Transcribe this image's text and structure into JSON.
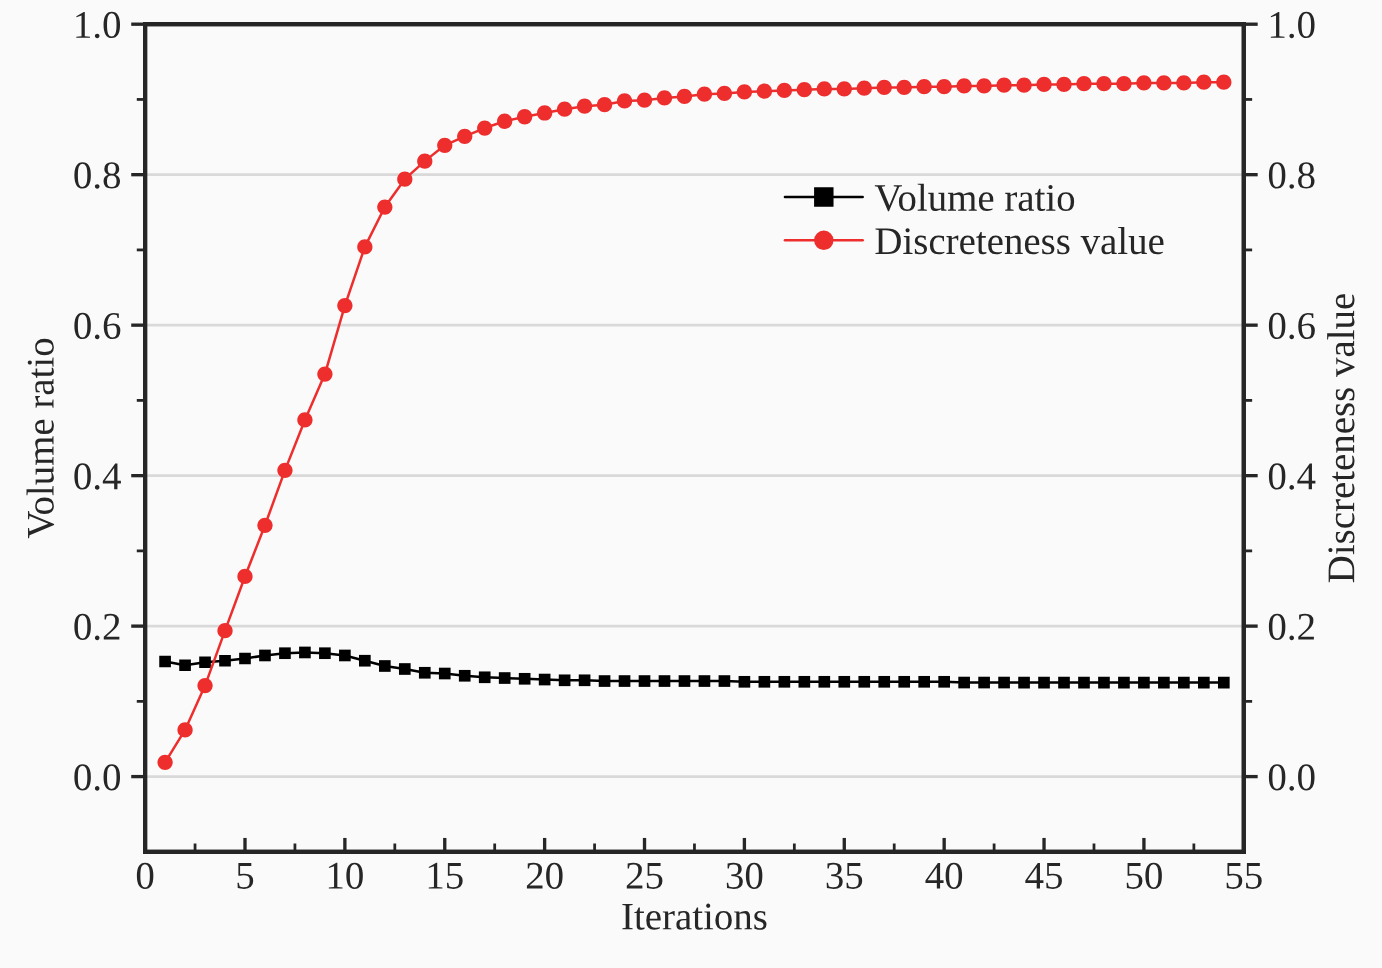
{
  "chart_data": {
    "type": "line",
    "xlabel": "Iterations",
    "ylabel": "Volume ratio",
    "y2label": "Discreteness value",
    "x": [
      1,
      2,
      3,
      4,
      5,
      6,
      7,
      8,
      9,
      10,
      11,
      12,
      13,
      14,
      15,
      16,
      17,
      18,
      19,
      20,
      21,
      22,
      23,
      24,
      25,
      26,
      27,
      28,
      29,
      30,
      31,
      32,
      33,
      34,
      35,
      36,
      37,
      38,
      39,
      40,
      41,
      42,
      43,
      44,
      45,
      46,
      47,
      48,
      49,
      50,
      51,
      52,
      53,
      54
    ],
    "series": [
      {
        "name": "Volume ratio",
        "color": "#000000",
        "marker": "square",
        "axis": "y",
        "values": [
          0.153,
          0.148,
          0.152,
          0.154,
          0.157,
          0.161,
          0.164,
          0.165,
          0.164,
          0.161,
          0.154,
          0.147,
          0.143,
          0.138,
          0.137,
          0.134,
          0.132,
          0.131,
          0.13,
          0.129,
          0.128,
          0.128,
          0.127,
          0.127,
          0.127,
          0.127,
          0.127,
          0.127,
          0.127,
          0.126,
          0.126,
          0.126,
          0.126,
          0.126,
          0.126,
          0.126,
          0.126,
          0.126,
          0.126,
          0.126,
          0.125,
          0.125,
          0.125,
          0.125,
          0.125,
          0.125,
          0.125,
          0.125,
          0.125,
          0.125,
          0.125,
          0.125,
          0.125,
          0.125
        ]
      },
      {
        "name": "Discreteness value",
        "color": "#ee2d2d",
        "marker": "circle",
        "axis": "y2",
        "values": [
          0.019,
          0.062,
          0.121,
          0.194,
          0.266,
          0.334,
          0.407,
          0.474,
          0.535,
          0.626,
          0.704,
          0.757,
          0.794,
          0.818,
          0.839,
          0.851,
          0.862,
          0.871,
          0.877,
          0.882,
          0.887,
          0.891,
          0.893,
          0.898,
          0.899,
          0.902,
          0.904,
          0.907,
          0.908,
          0.91,
          0.911,
          0.912,
          0.913,
          0.914,
          0.914,
          0.915,
          0.916,
          0.916,
          0.917,
          0.917,
          0.918,
          0.918,
          0.919,
          0.919,
          0.92,
          0.92,
          0.921,
          0.921,
          0.921,
          0.922,
          0.922,
          0.922,
          0.923,
          0.923
        ]
      }
    ],
    "xlim": [
      0,
      55
    ],
    "xticks": [
      0,
      {
        "value": 2.5,
        "label": null
      },
      5,
      {
        "value": 7.5,
        "label": null
      },
      10,
      {
        "value": 12.5,
        "label": null
      },
      15,
      {
        "value": 17.5,
        "label": null
      },
      20,
      {
        "value": 22.5,
        "label": null
      },
      25,
      {
        "value": 27.5,
        "label": null
      },
      30,
      {
        "value": 32.5,
        "label": null
      },
      35,
      {
        "value": 37.5,
        "label": null
      },
      40,
      {
        "value": 42.5,
        "label": null
      },
      45,
      {
        "value": 47.5,
        "label": null
      },
      50,
      {
        "value": 52.5,
        "label": null
      },
      55
    ],
    "ylim": [
      -0.1,
      1.0
    ],
    "yticks": [
      {
        "value": 0.0,
        "label": "0.0"
      },
      {
        "value": 0.1,
        "label": null
      },
      {
        "value": 0.2,
        "label": "0.2"
      },
      {
        "value": 0.3,
        "label": null
      },
      {
        "value": 0.4,
        "label": "0.4"
      },
      {
        "value": 0.5,
        "label": null
      },
      {
        "value": 0.6,
        "label": "0.6"
      },
      {
        "value": 0.7,
        "label": null
      },
      {
        "value": 0.8,
        "label": "0.8"
      },
      {
        "value": 0.9,
        "label": null
      },
      {
        "value": 1.0,
        "label": "1.0"
      }
    ],
    "y2lim": [
      -0.1,
      1.0
    ],
    "y2ticks": [
      {
        "value": 0.0,
        "label": "0.0"
      },
      {
        "value": 0.1,
        "label": null
      },
      {
        "value": 0.2,
        "label": "0.2"
      },
      {
        "value": 0.3,
        "label": null
      },
      {
        "value": 0.4,
        "label": "0.4"
      },
      {
        "value": 0.5,
        "label": null
      },
      {
        "value": 0.6,
        "label": "0.6"
      },
      {
        "value": 0.7,
        "label": null
      },
      {
        "value": 0.8,
        "label": "0.8"
      },
      {
        "value": 0.9,
        "label": null
      },
      {
        "value": 1.0,
        "label": "1.0"
      }
    ],
    "grid": "y",
    "legend": "right",
    "line_style": "solid"
  }
}
